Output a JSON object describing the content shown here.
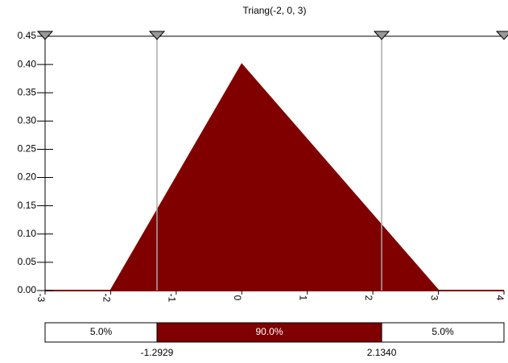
{
  "chart_data": {
    "type": "area",
    "title": "Triang(-2, 0, 3)",
    "x": [
      -3,
      -2,
      0,
      3,
      4
    ],
    "values": [
      0,
      0,
      0.4,
      0,
      0
    ],
    "color": "#800000",
    "xlim": [
      -3,
      4
    ],
    "xticks": [
      -3,
      -2,
      -1,
      0,
      1,
      2,
      3,
      4
    ],
    "ylim": [
      0,
      0.45
    ],
    "yticks": [
      {
        "value": 0,
        "label": "0.00"
      },
      0.05,
      {
        "value": 0.1,
        "label": "0.10"
      },
      0.15,
      {
        "value": 0.2,
        "label": "0.20"
      },
      0.25,
      {
        "value": 0.3,
        "label": "0.30"
      },
      0.35,
      {
        "value": 0.4,
        "label": "0.40"
      },
      0.45
    ],
    "delimiters": [
      -1.2929,
      {
        "value": 2.134,
        "label": "2.1340"
      }
    ],
    "delimiter_color": "#aaaaaa",
    "bar": {
      "values": [
        5,
        90,
        5
      ],
      "value_labels": [
        "5.0%",
        "90.0%",
        "5.0%"
      ]
    }
  }
}
